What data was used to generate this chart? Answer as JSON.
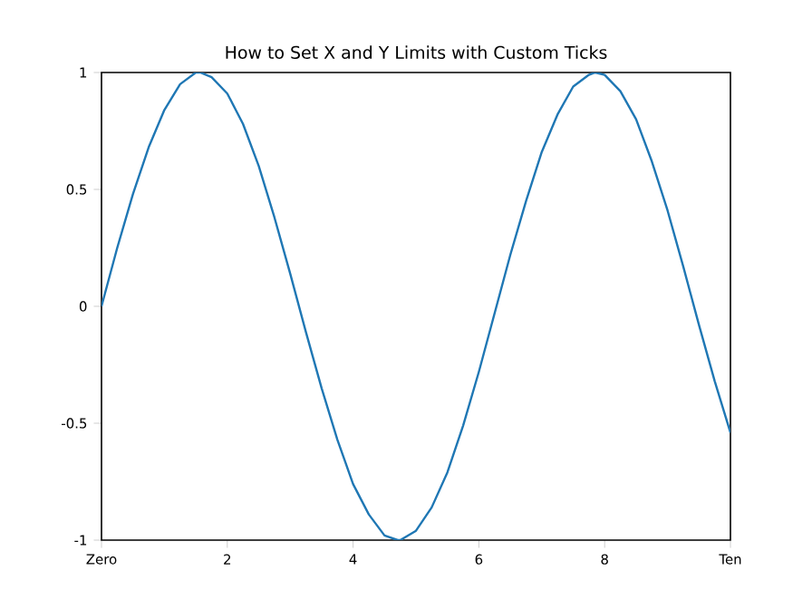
{
  "chart_data": {
    "type": "line",
    "title": "How to Set X and Y Limits with Custom Ticks",
    "x": [
      0,
      0.25,
      0.5,
      0.75,
      1,
      1.25,
      1.5,
      1.57,
      1.75,
      2,
      2.25,
      2.5,
      2.75,
      3,
      3.25,
      3.5,
      3.75,
      4,
      4.25,
      4.5,
      4.71,
      4.75,
      5,
      5.25,
      5.5,
      5.75,
      6,
      6.25,
      6.5,
      6.75,
      7,
      7.25,
      7.5,
      7.75,
      7.85,
      8,
      8.25,
      8.5,
      8.75,
      9,
      9.25,
      9.5,
      9.75,
      10
    ],
    "series": [
      {
        "color": "#1f77b4",
        "values": [
          0,
          0.25,
          0.48,
          0.68,
          0.84,
          0.95,
          1.0,
          1.0,
          0.98,
          0.91,
          0.78,
          0.6,
          0.38,
          0.14,
          -0.11,
          -0.35,
          -0.57,
          -0.76,
          -0.89,
          -0.98,
          -1.0,
          -1.0,
          -0.96,
          -0.86,
          -0.71,
          -0.51,
          -0.28,
          -0.03,
          0.22,
          0.45,
          0.66,
          0.82,
          0.94,
          0.99,
          1.0,
          0.99,
          0.92,
          0.8,
          0.62,
          0.41,
          0.17,
          -0.08,
          -0.32,
          -0.54
        ]
      }
    ],
    "xlim": [
      0,
      10
    ],
    "ylim": [
      -1,
      1
    ],
    "xticks": [
      {
        "value": 0,
        "label": "Zero"
      },
      2,
      4,
      6,
      8,
      {
        "value": 10,
        "label": "Ten"
      }
    ],
    "yticks": [
      -1,
      -0.5,
      0,
      0.5,
      1
    ],
    "grid": false
  }
}
